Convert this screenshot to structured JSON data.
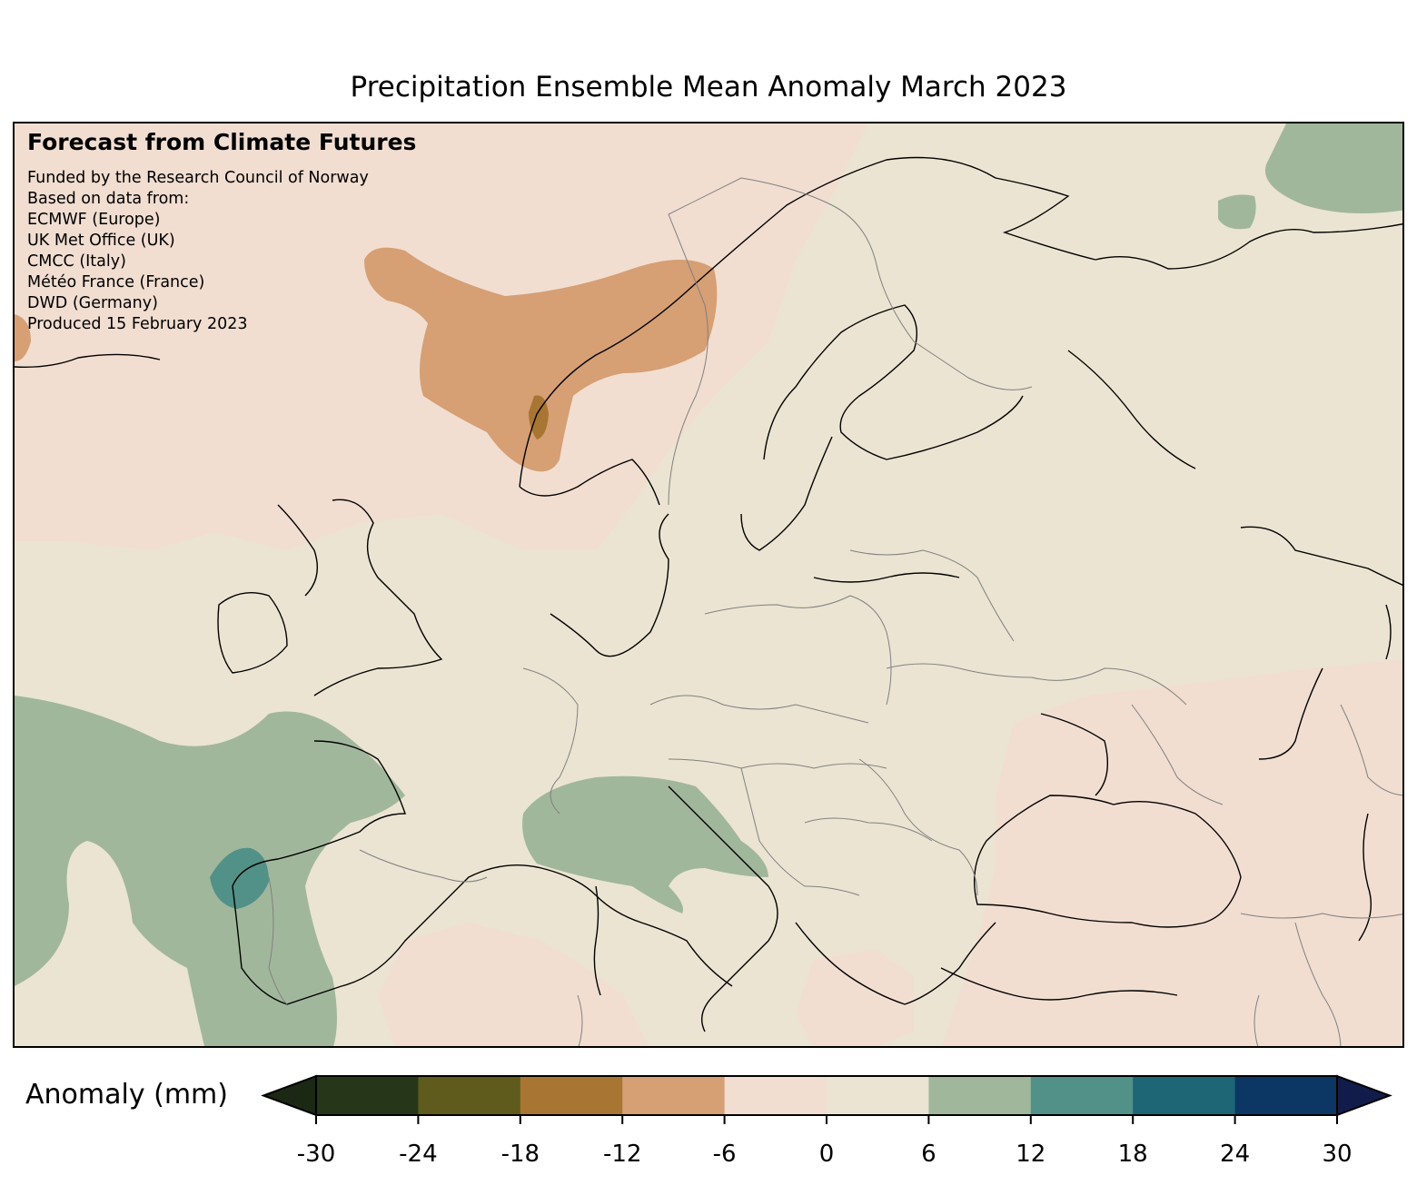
{
  "title": "Precipitation Ensemble Mean Anomaly March 2023",
  "credits": {
    "heading": "Forecast from Climate Futures",
    "lines": [
      "Funded by the Research Council of Norway",
      "Based on data from:",
      "ECMWF (Europe)",
      "UK Met Office (UK)",
      "CMCC (Italy)",
      "Météo France (France)",
      "DWD (Germany)",
      "Produced 15 February 2023"
    ]
  },
  "colorbar": {
    "label": "Anomaly (mm)",
    "ticks": [
      "-30",
      "-24",
      "-18",
      "-12",
      "-6",
      "0",
      "6",
      "12",
      "18",
      "24",
      "30"
    ],
    "colors": [
      "#263619",
      "#5e5b1c",
      "#a97532",
      "#d69f74",
      "#f1ded1",
      "#ebe4d2",
      "#a1b79c",
      "#529187",
      "#1e6676",
      "#0c3764"
    ],
    "extend_low_color": "#1a2814",
    "extend_high_color": "#121c4a"
  },
  "map": {
    "region": "Europe",
    "background_color": "#ebe4d2"
  }
}
